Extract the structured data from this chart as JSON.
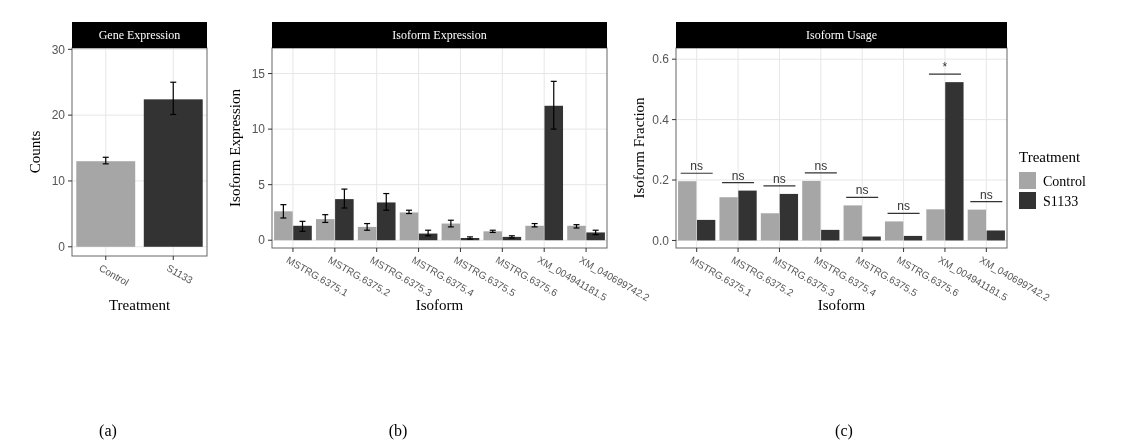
{
  "chart_data": [
    {
      "type": "bar",
      "title": "Gene Expression",
      "xlabel": "Treatment",
      "ylabel": "Counts",
      "categories": [
        "Control",
        "S1133"
      ],
      "values": [
        13.0,
        22.4
      ],
      "colors": [
        "#a6a6a6",
        "#333333"
      ],
      "errors": [
        [
          12.6,
          13.6
        ],
        [
          20.1,
          25.0
        ]
      ],
      "ylim": [
        -1.4,
        30.2
      ],
      "yticks": [
        0,
        10,
        20,
        30
      ],
      "grid": true,
      "annotations": [
        "(a)"
      ]
    },
    {
      "type": "bar",
      "title": "Isoform Expression",
      "xlabel": "Isoform",
      "ylabel": "Isoform Expression",
      "categories": [
        "MSTRG.6375.1",
        "MSTRG.6375.2",
        "MSTRG.6375.3",
        "MSTRG.6375.4",
        "MSTRG.6375.5",
        "MSTRG.6375.6",
        "XM_004941181.5",
        "XM_040699742.2"
      ],
      "series": [
        {
          "color": "#a6a6a6",
          "values": [
            2.6,
            1.9,
            1.2,
            2.5,
            1.5,
            0.8,
            1.3,
            1.3
          ],
          "errors": [
            [
              2.0,
              3.2
            ],
            [
              1.6,
              2.3
            ],
            [
              0.9,
              1.5
            ],
            [
              2.4,
              2.7
            ],
            [
              1.2,
              1.8
            ],
            [
              0.7,
              0.9
            ],
            [
              1.2,
              1.5
            ],
            [
              1.1,
              1.4
            ]
          ]
        },
        {
          "color": "#333333",
          "values": [
            1.3,
            3.7,
            3.4,
            0.6,
            0.2,
            0.3,
            12.1,
            0.7
          ],
          "errors": [
            [
              0.8,
              1.7
            ],
            [
              2.9,
              4.6
            ],
            [
              2.7,
              4.2
            ],
            [
              0.4,
              0.9
            ],
            [
              0.1,
              0.3
            ],
            [
              0.2,
              0.4
            ],
            [
              10.0,
              14.3
            ],
            [
              0.5,
              0.9
            ]
          ]
        }
      ],
      "ylim": [
        -0.7,
        17.3
      ],
      "yticks": [
        0,
        5,
        10,
        15
      ],
      "grid": true,
      "annotations": [
        "(b)"
      ]
    },
    {
      "type": "bar",
      "title": "Isoform Usage",
      "xlabel": "Isoform",
      "ylabel": "Isoform Fraction",
      "legend_title": "Treatment",
      "legend": "right",
      "categories": [
        "MSTRG.6375.1",
        "MSTRG.6375.2",
        "MSTRG.6375.3",
        "MSTRG.6375.4",
        "MSTRG.6375.5",
        "MSTRG.6375.6",
        "XM_004941181.5",
        "XM_040699742.2"
      ],
      "series": [
        {
          "name": "Control",
          "color": "#a6a6a6",
          "values": [
            0.196,
            0.143,
            0.09,
            0.197,
            0.116,
            0.063,
            0.103,
            0.102
          ]
        },
        {
          "name": "S1133",
          "color": "#333333",
          "values": [
            0.068,
            0.165,
            0.154,
            0.035,
            0.013,
            0.015,
            0.524,
            0.033
          ]
        }
      ],
      "ylim": [
        -0.025,
        0.637
      ],
      "yticks": [
        {
          "value": 0,
          "label": "0.0"
        },
        {
          "value": 0.2,
          "label": "0.2"
        },
        {
          "value": 0.4,
          "label": "0.4"
        },
        {
          "value": 0.6,
          "label": "0.6"
        }
      ],
      "grid": true,
      "annotations": [
        "(c)",
        "ns",
        "ns",
        "ns",
        "ns",
        "ns",
        "ns",
        "*",
        "ns"
      ]
    }
  ]
}
